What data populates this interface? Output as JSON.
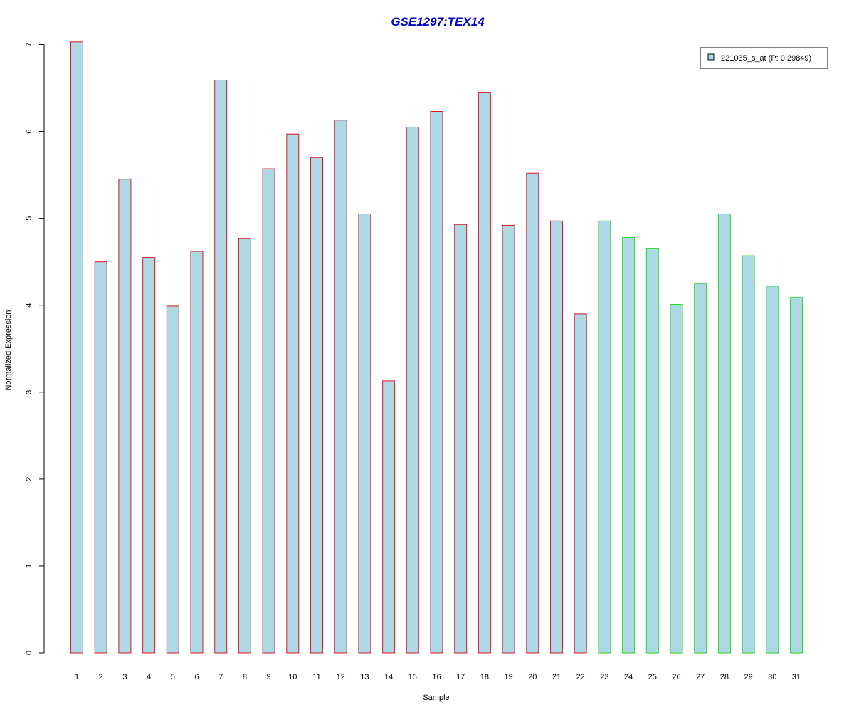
{
  "chart_data": {
    "type": "bar",
    "title": "GSE1297:TEX14",
    "xlabel": "Sample",
    "ylabel": "Normalized Expression",
    "ylim": [
      0,
      7
    ],
    "yticks": [
      "0",
      "1",
      "2",
      "3",
      "4",
      "5",
      "6",
      "7"
    ],
    "categories": [
      "1",
      "2",
      "3",
      "4",
      "5",
      "6",
      "7",
      "8",
      "9",
      "10",
      "11",
      "12",
      "13",
      "14",
      "15",
      "16",
      "17",
      "18",
      "19",
      "20",
      "21",
      "22",
      "23",
      "24",
      "25",
      "26",
      "27",
      "28",
      "29",
      "30",
      "31"
    ],
    "series": [
      {
        "name": "221035_s_at (P: 0.29849)",
        "values": [
          7.03,
          4.5,
          5.45,
          4.55,
          3.99,
          4.62,
          6.59,
          4.77,
          5.57,
          5.97,
          5.7,
          6.13,
          5.05,
          3.13,
          6.05,
          6.23,
          4.93,
          6.45,
          4.92,
          5.52,
          4.97,
          3.9,
          4.97,
          4.78,
          4.65,
          4.01,
          4.25,
          5.05,
          4.57,
          4.22,
          4.09
        ]
      }
    ],
    "group_border_colors": [
      "#e0151f",
      "#e0151f",
      "#e0151f",
      "#e0151f",
      "#e0151f",
      "#e0151f",
      "#e0151f",
      "#e0151f",
      "#e0151f",
      "#e0151f",
      "#e0151f",
      "#e0151f",
      "#e0151f",
      "#e0151f",
      "#e0151f",
      "#e0151f",
      "#e0151f",
      "#e0151f",
      "#e0151f",
      "#e0151f",
      "#e0151f",
      "#e0151f",
      "#22dd22",
      "#22dd22",
      "#22dd22",
      "#22dd22",
      "#22dd22",
      "#22dd22",
      "#22dd22",
      "#22dd22",
      "#22dd22"
    ],
    "bar_fill": "#add8e6",
    "title_color": "#0000cc",
    "legend_placement": "top-right",
    "grid": false
  }
}
